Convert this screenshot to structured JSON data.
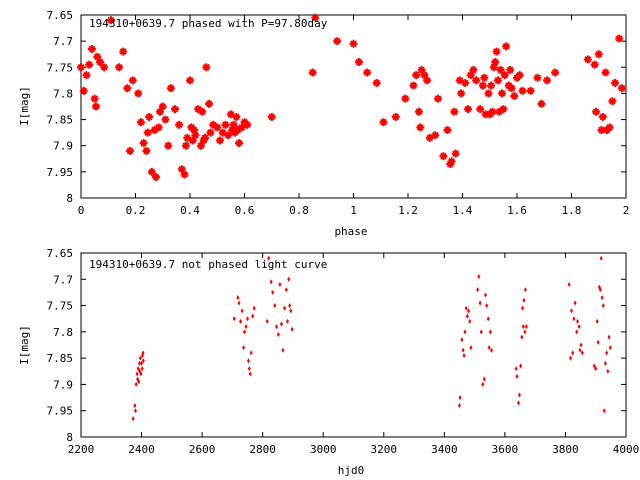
{
  "chart_data": [
    {
      "type": "scatter",
      "title": "194310+0639.7 phased with P=97.80day",
      "xlabel": "phase",
      "ylabel": "I[mag]",
      "xlim": [
        0,
        2
      ],
      "ylim": [
        7.65,
        8
      ],
      "y_inverted": true,
      "grid": false,
      "marker_color": "#ff0000",
      "marker_style": "star",
      "xticks": [
        "0",
        "0.2",
        "0.4",
        "0.6",
        "0.8",
        "1",
        "1.2",
        "1.4",
        "1.6",
        "1.8",
        "2"
      ],
      "yticks": [
        "7.65",
        "7.7",
        "7.75",
        "7.8",
        "7.85",
        "7.9",
        "7.95",
        "8"
      ],
      "points": [
        [
          0.0,
          7.75
        ],
        [
          0.01,
          7.795
        ],
        [
          0.02,
          7.765
        ],
        [
          0.03,
          7.745
        ],
        [
          0.04,
          7.715
        ],
        [
          0.05,
          7.81
        ],
        [
          0.055,
          7.825
        ],
        [
          0.06,
          7.73
        ],
        [
          0.07,
          7.74
        ],
        [
          0.085,
          7.75
        ],
        [
          0.11,
          7.66
        ],
        [
          0.14,
          7.75
        ],
        [
          0.155,
          7.72
        ],
        [
          0.17,
          7.79
        ],
        [
          0.18,
          7.91
        ],
        [
          0.19,
          7.775
        ],
        [
          0.21,
          7.8
        ],
        [
          0.22,
          7.855
        ],
        [
          0.23,
          7.895
        ],
        [
          0.24,
          7.91
        ],
        [
          0.245,
          7.875
        ],
        [
          0.25,
          7.845
        ],
        [
          0.26,
          7.95
        ],
        [
          0.27,
          7.87
        ],
        [
          0.275,
          7.96
        ],
        [
          0.285,
          7.865
        ],
        [
          0.29,
          7.835
        ],
        [
          0.3,
          7.825
        ],
        [
          0.31,
          7.85
        ],
        [
          0.32,
          7.9
        ],
        [
          0.33,
          7.79
        ],
        [
          0.345,
          7.83
        ],
        [
          0.36,
          7.86
        ],
        [
          0.37,
          7.945
        ],
        [
          0.38,
          7.955
        ],
        [
          0.385,
          7.9
        ],
        [
          0.39,
          7.885
        ],
        [
          0.4,
          7.775
        ],
        [
          0.405,
          7.865
        ],
        [
          0.41,
          7.89
        ],
        [
          0.415,
          7.87
        ],
        [
          0.42,
          7.88
        ],
        [
          0.43,
          7.83
        ],
        [
          0.44,
          7.9
        ],
        [
          0.445,
          7.835
        ],
        [
          0.45,
          7.89
        ],
        [
          0.455,
          7.885
        ],
        [
          0.46,
          7.75
        ],
        [
          0.47,
          7.82
        ],
        [
          0.475,
          7.875
        ],
        [
          0.485,
          7.86
        ],
        [
          0.5,
          7.865
        ],
        [
          0.51,
          7.89
        ],
        [
          0.52,
          7.875
        ],
        [
          0.53,
          7.86
        ],
        [
          0.54,
          7.88
        ],
        [
          0.55,
          7.84
        ],
        [
          0.555,
          7.87
        ],
        [
          0.56,
          7.86
        ],
        [
          0.565,
          7.875
        ],
        [
          0.57,
          7.845
        ],
        [
          0.575,
          7.87
        ],
        [
          0.58,
          7.895
        ],
        [
          0.59,
          7.865
        ],
        [
          0.6,
          7.855
        ],
        [
          0.61,
          7.86
        ],
        [
          0.7,
          7.845
        ],
        [
          0.85,
          7.76
        ],
        [
          0.86,
          7.655
        ],
        [
          0.94,
          7.7
        ],
        [
          1.0,
          7.705
        ],
        [
          1.02,
          7.74
        ],
        [
          1.05,
          7.76
        ],
        [
          1.085,
          7.78
        ],
        [
          1.11,
          7.855
        ],
        [
          1.155,
          7.845
        ],
        [
          1.19,
          7.81
        ],
        [
          1.22,
          7.785
        ],
        [
          1.23,
          7.765
        ],
        [
          1.24,
          7.835
        ],
        [
          1.245,
          7.865
        ],
        [
          1.25,
          7.755
        ],
        [
          1.26,
          7.765
        ],
        [
          1.27,
          7.775
        ],
        [
          1.28,
          7.885
        ],
        [
          1.3,
          7.88
        ],
        [
          1.31,
          7.81
        ],
        [
          1.33,
          7.92
        ],
        [
          1.345,
          7.87
        ],
        [
          1.355,
          7.935
        ],
        [
          1.36,
          7.93
        ],
        [
          1.37,
          7.835
        ],
        [
          1.375,
          7.915
        ],
        [
          1.39,
          7.775
        ],
        [
          1.395,
          7.8
        ],
        [
          1.41,
          7.78
        ],
        [
          1.42,
          7.83
        ],
        [
          1.43,
          7.765
        ],
        [
          1.44,
          7.755
        ],
        [
          1.45,
          7.775
        ],
        [
          1.465,
          7.83
        ],
        [
          1.475,
          7.785
        ],
        [
          1.48,
          7.77
        ],
        [
          1.485,
          7.84
        ],
        [
          1.495,
          7.8
        ],
        [
          1.5,
          7.84
        ],
        [
          1.505,
          7.785
        ],
        [
          1.51,
          7.835
        ],
        [
          1.515,
          7.75
        ],
        [
          1.52,
          7.74
        ],
        [
          1.525,
          7.72
        ],
        [
          1.53,
          7.775
        ],
        [
          1.535,
          7.835
        ],
        [
          1.54,
          7.755
        ],
        [
          1.545,
          7.8
        ],
        [
          1.55,
          7.83
        ],
        [
          1.555,
          7.765
        ],
        [
          1.56,
          7.71
        ],
        [
          1.57,
          7.785
        ],
        [
          1.575,
          7.755
        ],
        [
          1.58,
          7.79
        ],
        [
          1.59,
          7.805
        ],
        [
          1.6,
          7.77
        ],
        [
          1.61,
          7.765
        ],
        [
          1.62,
          7.795
        ],
        [
          1.65,
          7.795
        ],
        [
          1.675,
          7.77
        ],
        [
          1.69,
          7.82
        ],
        [
          1.71,
          7.775
        ],
        [
          1.74,
          7.76
        ],
        [
          1.86,
          7.735
        ],
        [
          1.885,
          7.745
        ],
        [
          1.89,
          7.835
        ],
        [
          1.9,
          7.725
        ],
        [
          1.91,
          7.87
        ],
        [
          1.915,
          7.845
        ],
        [
          1.925,
          7.76
        ],
        [
          1.93,
          7.87
        ],
        [
          1.94,
          7.865
        ],
        [
          1.95,
          7.815
        ],
        [
          1.96,
          7.78
        ],
        [
          1.975,
          7.695
        ],
        [
          1.985,
          7.79
        ]
      ]
    },
    {
      "type": "scatter",
      "title": "194310+0639.7 not phased light curve",
      "xlabel": "hjd0",
      "ylabel": "I[mag]",
      "xlim": [
        2200,
        4000
      ],
      "ylim": [
        7.65,
        8
      ],
      "y_inverted": true,
      "grid": false,
      "marker_color": "#ff0000",
      "marker_style": "dot",
      "xticks": [
        "2200",
        "2400",
        "2600",
        "2800",
        "3000",
        "3200",
        "3400",
        "3600",
        "3800",
        "4000"
      ],
      "yticks": [
        "7.65",
        "7.7",
        "7.75",
        "7.8",
        "7.85",
        "7.9",
        "7.95",
        "8"
      ],
      "points": [
        [
          2372,
          7.965
        ],
        [
          2378,
          7.94
        ],
        [
          2380,
          7.95
        ],
        [
          2382,
          7.9
        ],
        [
          2385,
          7.88
        ],
        [
          2387,
          7.89
        ],
        [
          2389,
          7.87
        ],
        [
          2391,
          7.895
        ],
        [
          2393,
          7.86
        ],
        [
          2394,
          7.875
        ],
        [
          2396,
          7.85
        ],
        [
          2398,
          7.88
        ],
        [
          2400,
          7.86
        ],
        [
          2402,
          7.87
        ],
        [
          2403,
          7.845
        ],
        [
          2405,
          7.84
        ],
        [
          2406,
          7.855
        ],
        [
          2706,
          7.775
        ],
        [
          2718,
          7.735
        ],
        [
          2722,
          7.745
        ],
        [
          2727,
          7.78
        ],
        [
          2732,
          7.76
        ],
        [
          2737,
          7.83
        ],
        [
          2740,
          7.8
        ],
        [
          2745,
          7.79
        ],
        [
          2750,
          7.775
        ],
        [
          2753,
          7.855
        ],
        [
          2756,
          7.87
        ],
        [
          2759,
          7.88
        ],
        [
          2762,
          7.84
        ],
        [
          2767,
          7.77
        ],
        [
          2772,
          7.755
        ],
        [
          2815,
          7.78
        ],
        [
          2820,
          7.66
        ],
        [
          2828,
          7.705
        ],
        [
          2833,
          7.725
        ],
        [
          2840,
          7.75
        ],
        [
          2846,
          7.79
        ],
        [
          2852,
          7.805
        ],
        [
          2857,
          7.71
        ],
        [
          2862,
          7.785
        ],
        [
          2867,
          7.835
        ],
        [
          2872,
          7.755
        ],
        [
          2878,
          7.72
        ],
        [
          2882,
          7.78
        ],
        [
          2886,
          7.7
        ],
        [
          2889,
          7.75
        ],
        [
          2893,
          7.76
        ],
        [
          2897,
          7.795
        ],
        [
          3450,
          7.94
        ],
        [
          3452,
          7.925
        ],
        [
          3458,
          7.815
        ],
        [
          3462,
          7.835
        ],
        [
          3465,
          7.845
        ],
        [
          3468,
          7.8
        ],
        [
          3472,
          7.755
        ],
        [
          3476,
          7.77
        ],
        [
          3480,
          7.76
        ],
        [
          3484,
          7.78
        ],
        [
          3488,
          7.83
        ],
        [
          3510,
          7.72
        ],
        [
          3514,
          7.695
        ],
        [
          3518,
          7.745
        ],
        [
          3522,
          7.8
        ],
        [
          3527,
          7.9
        ],
        [
          3532,
          7.89
        ],
        [
          3536,
          7.73
        ],
        [
          3540,
          7.75
        ],
        [
          3545,
          7.775
        ],
        [
          3548,
          7.83
        ],
        [
          3552,
          7.8
        ],
        [
          3556,
          7.835
        ],
        [
          3637,
          7.87
        ],
        [
          3640,
          7.885
        ],
        [
          3645,
          7.935
        ],
        [
          3648,
          7.92
        ],
        [
          3652,
          7.865
        ],
        [
          3656,
          7.81
        ],
        [
          3658,
          7.755
        ],
        [
          3661,
          7.79
        ],
        [
          3663,
          7.74
        ],
        [
          3666,
          7.8
        ],
        [
          3668,
          7.72
        ],
        [
          3671,
          7.79
        ],
        [
          3812,
          7.71
        ],
        [
          3817,
          7.85
        ],
        [
          3820,
          7.76
        ],
        [
          3824,
          7.84
        ],
        [
          3828,
          7.775
        ],
        [
          3832,
          7.745
        ],
        [
          3837,
          7.8
        ],
        [
          3840,
          7.78
        ],
        [
          3845,
          7.79
        ],
        [
          3848,
          7.835
        ],
        [
          3852,
          7.825
        ],
        [
          3856,
          7.84
        ],
        [
          3895,
          7.865
        ],
        [
          3900,
          7.87
        ],
        [
          3905,
          7.78
        ],
        [
          3908,
          7.82
        ],
        [
          3912,
          7.715
        ],
        [
          3915,
          7.72
        ],
        [
          3918,
          7.66
        ],
        [
          3921,
          7.735
        ],
        [
          3925,
          7.75
        ],
        [
          3928,
          7.95
        ],
        [
          3932,
          7.86
        ],
        [
          3936,
          7.84
        ],
        [
          3940,
          7.875
        ],
        [
          3944,
          7.81
        ],
        [
          3948,
          7.83
        ]
      ]
    }
  ]
}
